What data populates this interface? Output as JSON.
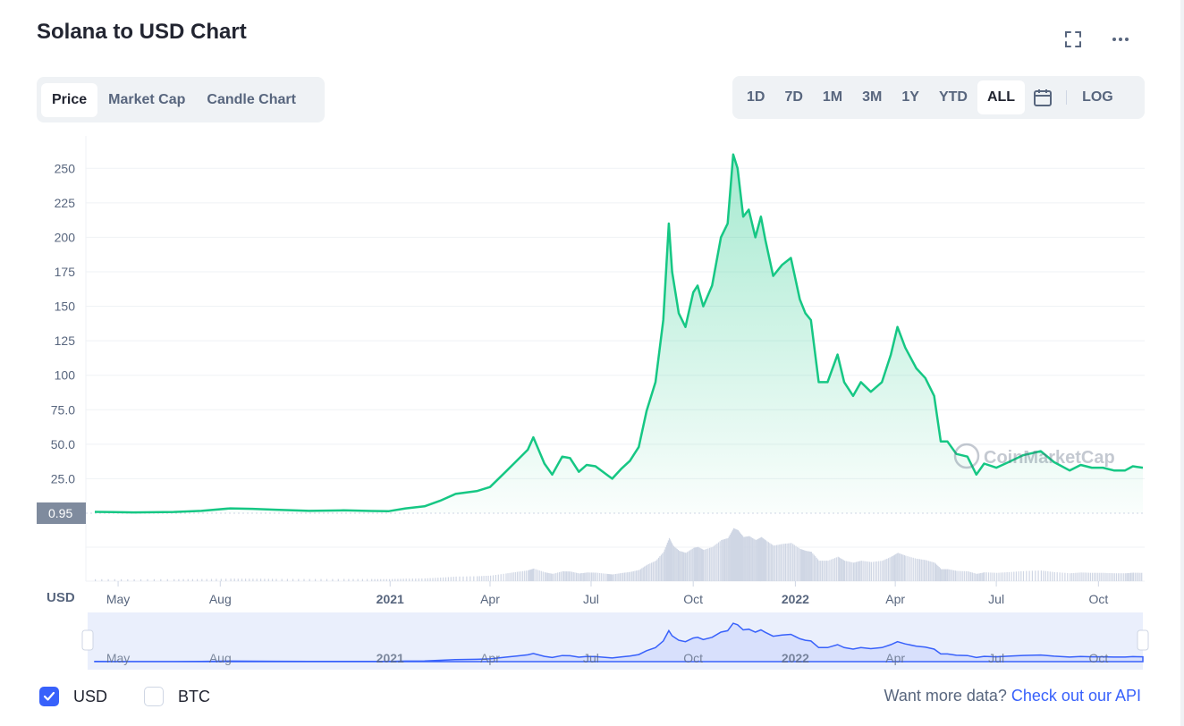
{
  "header": {
    "title": "Solana to USD Chart"
  },
  "icons": {
    "fullscreen": "fullscreen-icon",
    "more": "more-dots-icon",
    "calendar": "calendar-icon",
    "check": "check-icon"
  },
  "tabs": [
    {
      "label": "Price",
      "active": true
    },
    {
      "label": "Market Cap",
      "active": false
    },
    {
      "label": "Candle Chart",
      "active": false
    }
  ],
  "ranges": [
    {
      "label": "1D",
      "active": false
    },
    {
      "label": "7D",
      "active": false
    },
    {
      "label": "1M",
      "active": false
    },
    {
      "label": "3M",
      "active": false
    },
    {
      "label": "1Y",
      "active": false
    },
    {
      "label": "YTD",
      "active": false
    },
    {
      "label": "ALL",
      "active": true
    }
  ],
  "log_label": "LOG",
  "currency_label": "USD",
  "watermark": "CoinMarketCap",
  "colors": {
    "line": "#16c784",
    "nav_line": "#3861fb",
    "accent": "#3861fb",
    "text_muted": "#58667e"
  },
  "footer": {
    "usd_label": "USD",
    "usd_checked": true,
    "btc_label": "BTC",
    "btc_checked": false,
    "api_prefix": "Want more data? ",
    "api_link": "Check out our API"
  },
  "chart_data": {
    "type": "area",
    "title": "Solana to USD Chart",
    "ylabel": "USD",
    "y_ticks": [
      "250",
      "225",
      "200",
      "175",
      "150",
      "125",
      "100",
      "75.0",
      "50.0",
      "25.0"
    ],
    "y_tick_values": [
      250,
      225,
      200,
      175,
      150,
      125,
      100,
      75,
      50,
      25
    ],
    "ylim": [
      0,
      260
    ],
    "current_price_label": "0.95",
    "current_price": 0.95,
    "x_ticks": [
      {
        "label": "May",
        "date": "2020-05-01",
        "bold": false
      },
      {
        "label": "Aug",
        "date": "2020-08-01",
        "bold": false
      },
      {
        "label": "2021",
        "date": "2021-01-01",
        "bold": true
      },
      {
        "label": "Apr",
        "date": "2021-04-01",
        "bold": false
      },
      {
        "label": "Jul",
        "date": "2021-07-01",
        "bold": false
      },
      {
        "label": "Oct",
        "date": "2021-10-01",
        "bold": false
      },
      {
        "label": "2022",
        "date": "2022-01-01",
        "bold": true
      },
      {
        "label": "Apr",
        "date": "2022-04-01",
        "bold": false
      },
      {
        "label": "Jul",
        "date": "2022-07-01",
        "bold": false
      },
      {
        "label": "Oct",
        "date": "2022-10-01",
        "bold": false
      }
    ],
    "xlim": [
      "2020-04-10",
      "2022-11-10"
    ],
    "grid": true,
    "series": [
      {
        "points": [
          [
            "2020-04-10",
            0.95
          ],
          [
            "2020-05-15",
            0.6
          ],
          [
            "2020-06-20",
            0.9
          ],
          [
            "2020-07-15",
            1.7
          ],
          [
            "2020-08-10",
            3.5
          ],
          [
            "2020-08-30",
            3.2
          ],
          [
            "2020-09-20",
            2.5
          ],
          [
            "2020-10-20",
            1.7
          ],
          [
            "2020-11-20",
            2.1
          ],
          [
            "2020-12-15",
            1.6
          ],
          [
            "2020-12-31",
            1.5
          ],
          [
            "2021-01-15",
            3.5
          ],
          [
            "2021-02-01",
            5
          ],
          [
            "2021-02-15",
            9
          ],
          [
            "2021-03-01",
            14
          ],
          [
            "2021-03-20",
            16
          ],
          [
            "2021-04-01",
            19
          ],
          [
            "2021-04-15",
            30
          ],
          [
            "2021-04-25",
            38
          ],
          [
            "2021-05-05",
            46
          ],
          [
            "2021-05-10",
            55
          ],
          [
            "2021-05-20",
            36
          ],
          [
            "2021-05-27",
            28
          ],
          [
            "2021-06-05",
            41
          ],
          [
            "2021-06-12",
            40
          ],
          [
            "2021-06-20",
            30
          ],
          [
            "2021-06-27",
            35
          ],
          [
            "2021-07-05",
            34
          ],
          [
            "2021-07-15",
            28
          ],
          [
            "2021-07-20",
            25
          ],
          [
            "2021-07-28",
            32
          ],
          [
            "2021-08-05",
            38
          ],
          [
            "2021-08-13",
            48
          ],
          [
            "2021-08-20",
            74
          ],
          [
            "2021-08-28",
            95
          ],
          [
            "2021-09-04",
            140
          ],
          [
            "2021-09-09",
            210
          ],
          [
            "2021-09-12",
            175
          ],
          [
            "2021-09-18",
            145
          ],
          [
            "2021-09-24",
            135
          ],
          [
            "2021-10-01",
            160
          ],
          [
            "2021-10-05",
            165
          ],
          [
            "2021-10-10",
            150
          ],
          [
            "2021-10-18",
            165
          ],
          [
            "2021-10-26",
            200
          ],
          [
            "2021-11-01",
            210
          ],
          [
            "2021-11-06",
            260
          ],
          [
            "2021-11-10",
            250
          ],
          [
            "2021-11-15",
            215
          ],
          [
            "2021-11-20",
            220
          ],
          [
            "2021-11-26",
            200
          ],
          [
            "2021-12-01",
            215
          ],
          [
            "2021-12-05",
            198
          ],
          [
            "2021-12-12",
            172
          ],
          [
            "2021-12-20",
            180
          ],
          [
            "2021-12-28",
            185
          ],
          [
            "2022-01-05",
            155
          ],
          [
            "2022-01-10",
            145
          ],
          [
            "2022-01-15",
            140
          ],
          [
            "2022-01-22",
            95
          ],
          [
            "2022-01-30",
            95
          ],
          [
            "2022-02-08",
            115
          ],
          [
            "2022-02-14",
            95
          ],
          [
            "2022-02-22",
            85
          ],
          [
            "2022-03-01",
            95
          ],
          [
            "2022-03-10",
            88
          ],
          [
            "2022-03-20",
            95
          ],
          [
            "2022-03-28",
            115
          ],
          [
            "2022-04-03",
            135
          ],
          [
            "2022-04-10",
            120
          ],
          [
            "2022-04-20",
            105
          ],
          [
            "2022-04-28",
            98
          ],
          [
            "2022-05-06",
            85
          ],
          [
            "2022-05-12",
            52
          ],
          [
            "2022-05-18",
            52
          ],
          [
            "2022-05-26",
            43
          ],
          [
            "2022-06-05",
            41
          ],
          [
            "2022-06-13",
            28
          ],
          [
            "2022-06-20",
            36
          ],
          [
            "2022-07-01",
            33
          ],
          [
            "2022-07-12",
            37
          ],
          [
            "2022-07-25",
            42
          ],
          [
            "2022-08-10",
            45
          ],
          [
            "2022-08-22",
            37
          ],
          [
            "2022-09-05",
            31
          ],
          [
            "2022-09-15",
            35
          ],
          [
            "2022-09-25",
            33
          ],
          [
            "2022-10-05",
            33
          ],
          [
            "2022-10-15",
            31
          ],
          [
            "2022-10-25",
            31
          ],
          [
            "2022-11-01",
            34
          ],
          [
            "2022-11-10",
            33
          ]
        ]
      }
    ]
  }
}
